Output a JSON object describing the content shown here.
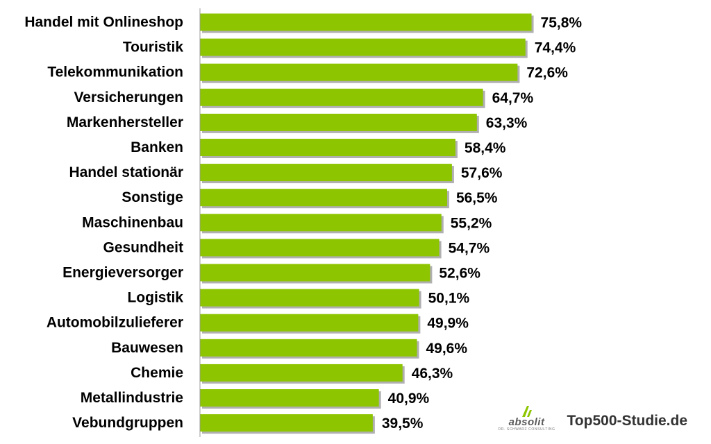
{
  "chart_data": {
    "type": "bar",
    "orientation": "horizontal",
    "categories": [
      "Handel mit Onlineshop",
      "Touristik",
      "Telekommunikation",
      "Versicherungen",
      "Markenhersteller",
      "Banken",
      "Handel stationär",
      "Sonstige",
      "Maschinenbau",
      "Gesundheit",
      "Energieversorger",
      "Logistik",
      "Automobilzulieferer",
      "Bauwesen",
      "Chemie",
      "Metallindustrie",
      "Vebundgruppen"
    ],
    "values": [
      75.8,
      74.4,
      72.6,
      64.7,
      63.3,
      58.4,
      57.6,
      56.5,
      55.2,
      54.7,
      52.6,
      50.1,
      49.9,
      49.6,
      46.3,
      40.9,
      39.5
    ],
    "value_labels": [
      "75,8%",
      "74,4%",
      "72,6%",
      "64,7%",
      "63,3%",
      "58,4%",
      "57,6%",
      "56,5%",
      "55,2%",
      "54,7%",
      "52,6%",
      "50,1%",
      "49,9%",
      "49,6%",
      "46,3%",
      "40,9%",
      "39,5%"
    ],
    "xlim": [
      0,
      100
    ],
    "unit": "%",
    "grid": false,
    "bar_color": "#8dc500",
    "bar_shadow_color": "#b0b0b0"
  },
  "branding": {
    "logo_text": "absolit",
    "logo_subtext": "DR. SCHWARZ CONSULTING",
    "logo_icon": "absolit-logo-icon",
    "logo_color": "#8dc500",
    "website": "Top500-Studie.de"
  }
}
